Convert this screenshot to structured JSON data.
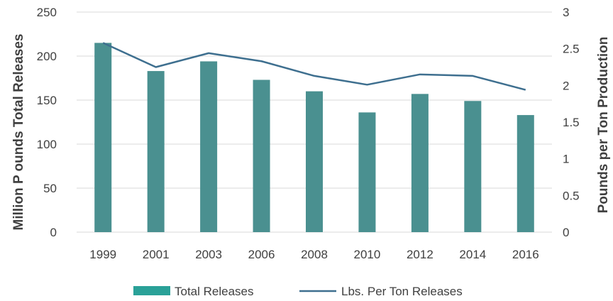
{
  "chart_data": {
    "type": "bar",
    "categories": [
      "1999",
      "2001",
      "2003",
      "2006",
      "2008",
      "2010",
      "2012",
      "2014",
      "2016"
    ],
    "series": [
      {
        "name": "Total Releases",
        "kind": "bar",
        "axis": "left",
        "values": [
          215,
          183,
          194,
          173,
          160,
          136,
          157,
          149,
          133
        ]
      },
      {
        "name": "Lbs. Per Ton Releases",
        "kind": "line",
        "axis": "right",
        "values": [
          2.58,
          2.25,
          2.44,
          2.33,
          2.13,
          2.01,
          2.15,
          2.13,
          1.94
        ]
      }
    ],
    "ylabel": "Million P ounds Total Releases",
    "y2label": "Pounds per Ton Production",
    "ylim": [
      0,
      250
    ],
    "y2lim": [
      0,
      3
    ],
    "yticks": [
      "0",
      "50",
      "100",
      "150",
      "200",
      "250"
    ],
    "y2ticks": [
      "0",
      "0.5",
      "1",
      "1.5",
      "2",
      "2.5",
      "3"
    ],
    "grid": true,
    "legend_position": "bottom",
    "colors": {
      "bar": "#4a9090",
      "line": "#3e6f8f",
      "grid": "#d9d9d9",
      "legend_bar": "#2aa198"
    }
  }
}
